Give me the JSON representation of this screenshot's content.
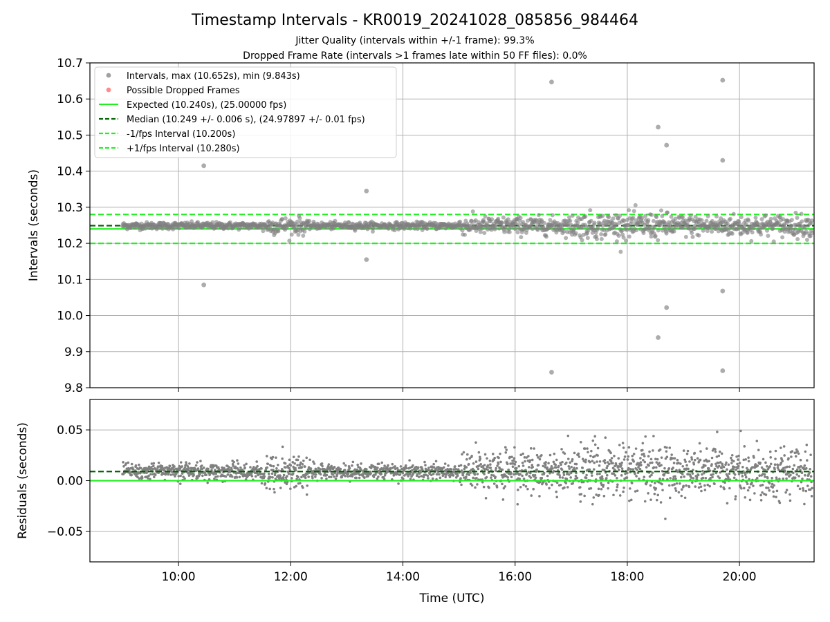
{
  "chart_data": [
    {
      "type": "scatter",
      "title": "Timestamp Intervals - KR0019_20241028_085856_984464",
      "subtitles": [
        "Jitter Quality (intervals within +/-1 frame): 99.3%",
        "Dropped Frame Rate (intervals >1 frames late within 50 FF files): 0.0%"
      ],
      "ylabel": "Intervals (seconds)",
      "xlabel": "",
      "xlim_hours": [
        8.42,
        21.33
      ],
      "ylim": [
        9.8,
        10.7
      ],
      "yticks": [
        9.8,
        9.9,
        10.0,
        10.1,
        10.2,
        10.3,
        10.4,
        10.5,
        10.6,
        10.7
      ],
      "ytick_labels": [
        "9.8",
        "9.9",
        "10.0",
        "10.1",
        "10.2",
        "10.3",
        "10.4",
        "10.5",
        "10.6",
        "10.7"
      ],
      "grid": true,
      "legend_position": "top-left",
      "legend": [
        {
          "label": "Intervals, max (10.652s), min (9.843s)",
          "kind": "marker",
          "color": "#808080"
        },
        {
          "label": "Possible Dropped Frames",
          "kind": "marker",
          "color": "#ff6666"
        },
        {
          "label": "Expected (10.240s), (25.00000 fps)",
          "kind": "solid",
          "color": "#22ee22"
        },
        {
          "label": "Median (10.249 +/- 0.006 s), (24.97897 +/- 0.01 fps)",
          "kind": "dashed",
          "color": "#006400"
        },
        {
          "label": "-1/fps Interval (10.200s)",
          "kind": "dashed",
          "color": "#22ee22"
        },
        {
          "label": "+1/fps Interval (10.280s)",
          "kind": "dashed",
          "color": "#22ee22"
        }
      ],
      "hlines": [
        {
          "name": "expected",
          "y": 10.24,
          "style": "solid",
          "color": "#22ee22"
        },
        {
          "name": "median",
          "y": 10.249,
          "style": "dashed",
          "color": "#006400"
        },
        {
          "name": "minus-one-fps",
          "y": 10.2,
          "style": "dashed",
          "color": "#22ee22"
        },
        {
          "name": "plus-one-fps",
          "y": 10.28,
          "style": "dashed",
          "color": "#22ee22"
        }
      ],
      "series": [
        {
          "kind": "intervals",
          "color": "#808080",
          "x_start": 9.0,
          "x_end": 21.3,
          "baseline": 10.249,
          "noise_profile": [
            {
              "from": 9.0,
              "to": 11.5,
              "amp": 0.008
            },
            {
              "from": 11.5,
              "to": 12.3,
              "amp": 0.02
            },
            {
              "from": 12.3,
              "to": 15.0,
              "amp": 0.008
            },
            {
              "from": 15.0,
              "to": 17.0,
              "amp": 0.02
            },
            {
              "from": 17.0,
              "to": 18.8,
              "amp": 0.03
            },
            {
              "from": 18.8,
              "to": 21.3,
              "amp": 0.025
            }
          ],
          "outliers": [
            {
              "x": 10.45,
              "y": 10.415
            },
            {
              "x": 10.45,
              "y": 10.085
            },
            {
              "x": 13.35,
              "y": 10.345
            },
            {
              "x": 13.35,
              "y": 10.155
            },
            {
              "x": 16.65,
              "y": 10.647
            },
            {
              "x": 16.65,
              "y": 9.843
            },
            {
              "x": 18.55,
              "y": 10.522
            },
            {
              "x": 18.55,
              "y": 9.939
            },
            {
              "x": 18.7,
              "y": 10.472
            },
            {
              "x": 18.7,
              "y": 10.022
            },
            {
              "x": 19.7,
              "y": 10.652
            },
            {
              "x": 19.7,
              "y": 9.847
            },
            {
              "x": 19.7,
              "y": 10.43
            },
            {
              "x": 19.7,
              "y": 10.068
            }
          ]
        }
      ],
      "dropped_frames": []
    },
    {
      "type": "scatter",
      "ylabel": "Residuals (seconds)",
      "xlabel": "Time (UTC)",
      "xlim_hours": [
        8.42,
        21.33
      ],
      "ylim": [
        -0.08,
        0.08
      ],
      "yticks": [
        -0.05,
        0.0,
        0.05
      ],
      "ytick_labels": [
        "−0.05",
        "0.00",
        "0.05"
      ],
      "xticks_hours": [
        10,
        12,
        14,
        16,
        18,
        20
      ],
      "xtick_labels": [
        "10:00",
        "12:00",
        "14:00",
        "16:00",
        "18:00",
        "20:00"
      ],
      "grid": true,
      "hlines": [
        {
          "name": "zero",
          "y": 0.0,
          "style": "solid",
          "color": "#22ee22"
        },
        {
          "name": "median-residual",
          "y": 0.009,
          "style": "dashed",
          "color": "#006400"
        }
      ],
      "series": [
        {
          "kind": "residuals",
          "color": "#808080",
          "x_start": 9.0,
          "x_end": 21.3,
          "baseline": 0.009,
          "noise_profile": [
            {
              "from": 9.0,
              "to": 11.5,
              "amp": 0.008
            },
            {
              "from": 11.5,
              "to": 12.3,
              "amp": 0.02
            },
            {
              "from": 12.3,
              "to": 15.0,
              "amp": 0.008
            },
            {
              "from": 15.0,
              "to": 17.0,
              "amp": 0.02
            },
            {
              "from": 17.0,
              "to": 18.8,
              "amp": 0.028
            },
            {
              "from": 18.8,
              "to": 21.3,
              "amp": 0.024
            }
          ]
        }
      ]
    }
  ]
}
